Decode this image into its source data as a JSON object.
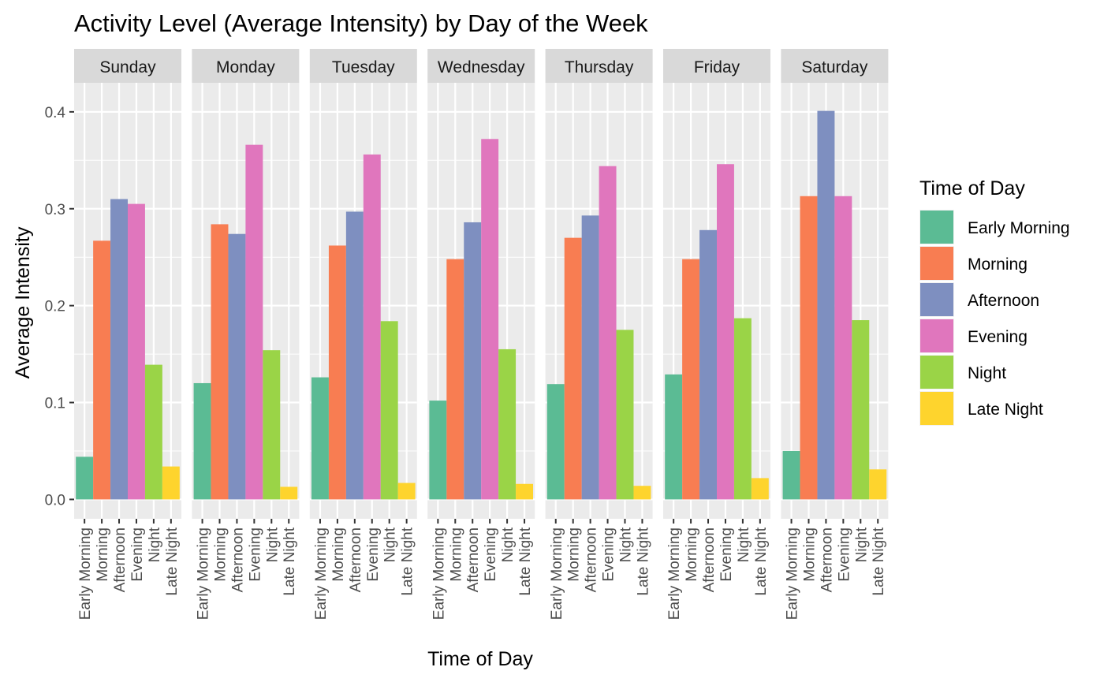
{
  "chart_data": {
    "type": "bar",
    "title": "Activity Level (Average Intensity) by Day of the Week",
    "xlabel": "Time of Day",
    "ylabel": "Average Intensity",
    "ylim": [
      -0.02,
      0.43
    ],
    "yticks": [
      0.0,
      0.1,
      0.2,
      0.3,
      0.4
    ],
    "ytick_labels": [
      "0.0",
      "0.1",
      "0.2",
      "0.3",
      "0.4"
    ],
    "grid": true,
    "legend": {
      "title": "Time of Day",
      "position": "right"
    },
    "categories": [
      "Early Morning",
      "Morning",
      "Afternoon",
      "Evening",
      "Night",
      "Late Night"
    ],
    "colors": [
      "#5BBB94",
      "#F87D52",
      "#7E8FC0",
      "#E076BD",
      "#9AD447",
      "#FED42D"
    ],
    "facets": [
      {
        "label": "Sunday",
        "values": [
          0.044,
          0.267,
          0.31,
          0.305,
          0.139,
          0.034
        ]
      },
      {
        "label": "Monday",
        "values": [
          0.12,
          0.284,
          0.274,
          0.366,
          0.154,
          0.013
        ]
      },
      {
        "label": "Tuesday",
        "values": [
          0.126,
          0.262,
          0.297,
          0.356,
          0.184,
          0.017
        ]
      },
      {
        "label": "Wednesday",
        "values": [
          0.102,
          0.248,
          0.286,
          0.372,
          0.155,
          0.016
        ]
      },
      {
        "label": "Thursday",
        "values": [
          0.119,
          0.27,
          0.293,
          0.344,
          0.175,
          0.014
        ]
      },
      {
        "label": "Friday",
        "values": [
          0.129,
          0.248,
          0.278,
          0.346,
          0.187,
          0.022
        ]
      },
      {
        "label": "Saturday",
        "values": [
          0.05,
          0.313,
          0.401,
          0.313,
          0.185,
          0.031
        ]
      }
    ]
  }
}
